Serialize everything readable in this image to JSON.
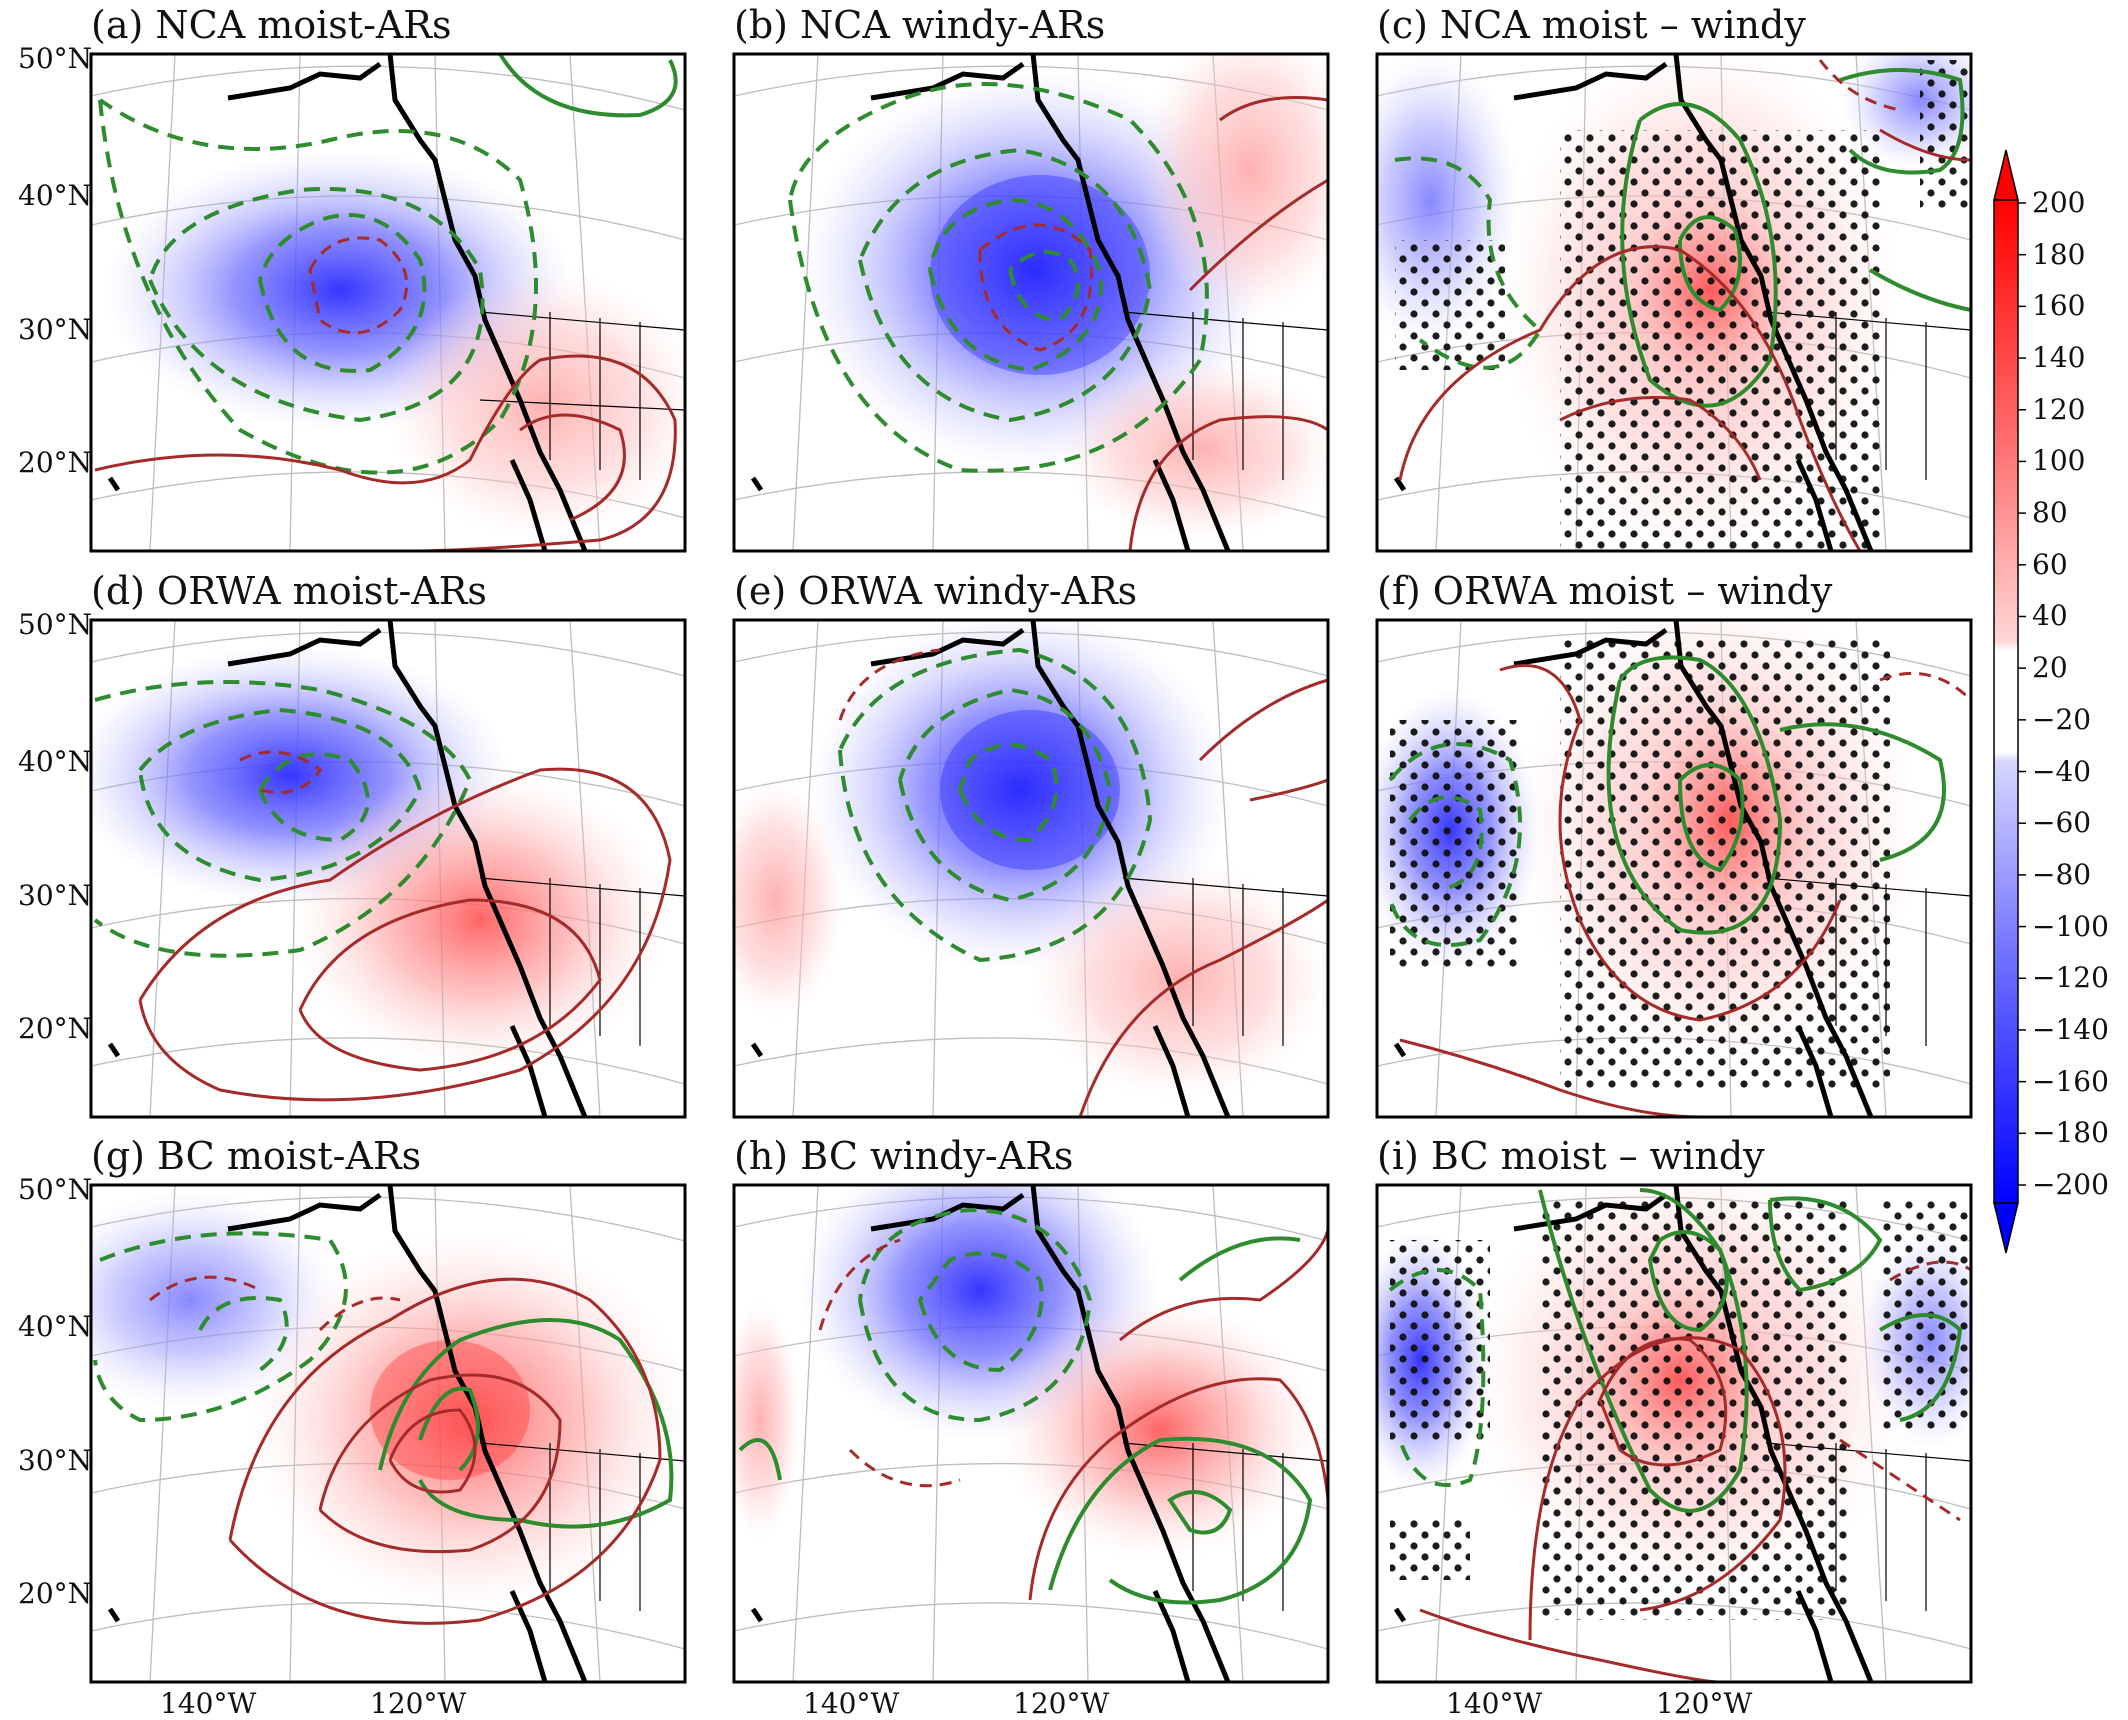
{
  "panels": [
    {
      "title": "(a) NCA moist-ARs"
    },
    {
      "title": "(b) NCA windy-ARs"
    },
    {
      "title": "(c) NCA moist – windy"
    },
    {
      "title": "(d) ORWA moist-ARs"
    },
    {
      "title": "(e) ORWA windy-ARs"
    },
    {
      "title": "(f) ORWA moist – windy"
    },
    {
      "title": "(g) BC moist-ARs"
    },
    {
      "title": "(h) BC windy-ARs"
    },
    {
      "title": "(i) BC moist – windy"
    }
  ],
  "lat_labels": [
    "50°N",
    "40°N",
    "30°N",
    "20°N"
  ],
  "lon_labels": [
    "140°W",
    "120°W"
  ],
  "colorbar": {
    "min": -200,
    "max": 200,
    "extend": "both",
    "colormap": "bwr",
    "low_color": "#0000ff",
    "high_color": "#ff0000",
    "tick_labels": [
      "200",
      "180",
      "160",
      "140",
      "120",
      "100",
      "80",
      "60",
      "40",
      "20",
      "−20",
      "−40",
      "−60",
      "−80",
      "−100",
      "−120",
      "−140",
      "−160",
      "−180",
      "−200"
    ]
  },
  "contour_colors": {
    "green": "#2e8b2e",
    "red": "#a52a2a",
    "coast": "#000000"
  }
}
